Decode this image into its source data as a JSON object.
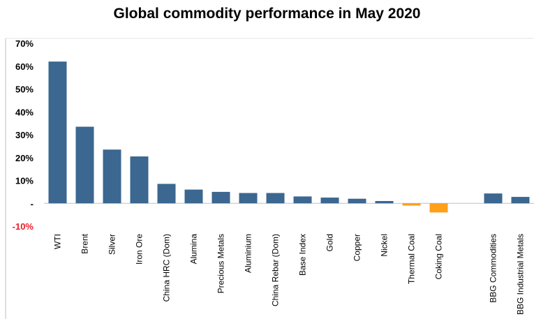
{
  "chart_data": {
    "type": "bar",
    "title": "Global commodity performance in May 2020",
    "xlabel": "",
    "ylabel": "",
    "ylim": [
      -10,
      70
    ],
    "grid": false,
    "legend": "none",
    "y_ticks": [
      {
        "value": 70,
        "label": "70%"
      },
      {
        "value": 60,
        "label": "60%"
      },
      {
        "value": 50,
        "label": "50%"
      },
      {
        "value": 40,
        "label": "40%"
      },
      {
        "value": 30,
        "label": "30%"
      },
      {
        "value": 20,
        "label": "20%"
      },
      {
        "value": 10,
        "label": "10%"
      },
      {
        "value": 0,
        "label": "-"
      },
      {
        "value": -10,
        "label": "-10%"
      }
    ],
    "categories": [
      "WTI",
      "Brent",
      "Silver",
      "Iron Ore",
      "China HRC (Dom)",
      "Alumina",
      "Precious Metals",
      "Aluminium",
      "China Rebar (Dom)",
      "Base Index",
      "Gold",
      "Copper",
      "Nickel",
      "Thermal Coal",
      "Coking Coal",
      "",
      "BBG Commodities",
      "BBG Industrial Metals"
    ],
    "values": [
      62,
      33.5,
      23.5,
      20.5,
      8.5,
      6,
      5,
      4.5,
      4.5,
      3,
      2.5,
      2,
      1,
      -1,
      -4,
      null,
      4.3,
      2.8
    ],
    "colors": {
      "positive": "#3b6790",
      "negative": "#ff9f1a",
      "axis": "#bfbfbf",
      "tick_positive": "#000000",
      "tick_negative": "#e8202a"
    }
  }
}
